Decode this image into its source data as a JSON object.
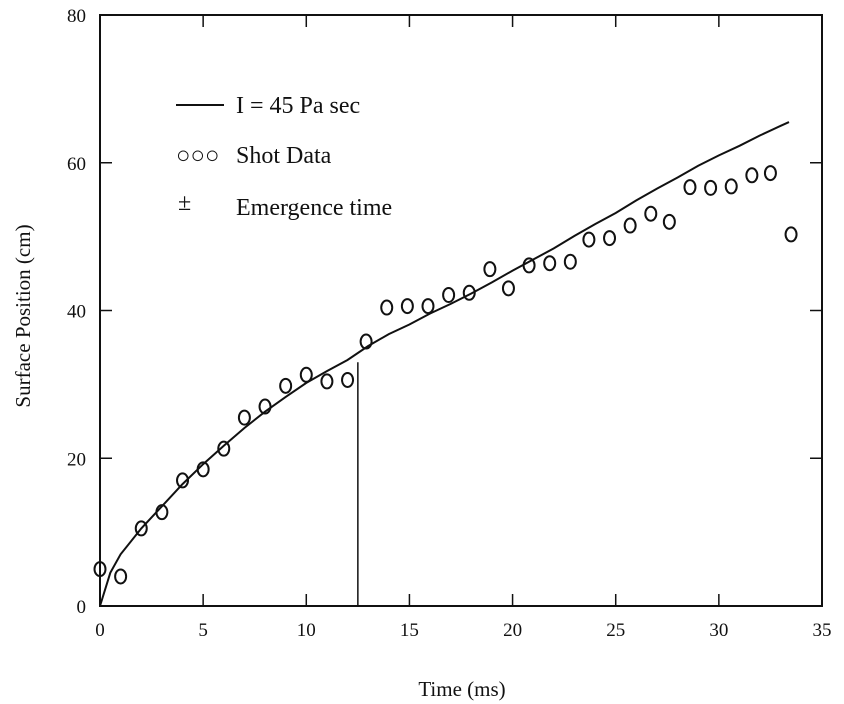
{
  "chart_data": {
    "type": "scatter",
    "xlabel": "Time (ms)",
    "ylabel": "Surface Position (cm)",
    "xlim": [
      0,
      35
    ],
    "ylim": [
      0,
      80
    ],
    "x_ticks": [
      "0",
      "5",
      "10",
      "15",
      "20",
      "25",
      "30",
      "35"
    ],
    "y_ticks": [
      "0",
      "20",
      "40",
      "60",
      "80"
    ],
    "x_tick_values": [
      0,
      5,
      10,
      15,
      20,
      25,
      30,
      35
    ],
    "y_tick_values": [
      0,
      20,
      40,
      60,
      80
    ],
    "grid": false,
    "legend_position": "top-left",
    "legend": {
      "line_label": "I = 45 Pa sec",
      "data_label": "Shot Data",
      "marker_symbol": "○○○",
      "emergence_symbol": "±",
      "emergence_label": "Emergence time"
    },
    "series": [
      {
        "name": "I = 45 Pa sec",
        "kind": "line",
        "x": [
          0,
          0.5,
          1,
          2,
          3,
          4,
          5,
          6,
          7,
          8,
          9,
          10,
          11,
          12,
          13,
          14,
          15,
          16,
          17,
          18,
          19,
          20,
          21,
          22,
          23,
          24,
          25,
          26,
          27,
          28,
          29,
          30,
          31,
          32,
          33,
          33.4
        ],
        "y": [
          0,
          4.5,
          7,
          10.5,
          13.5,
          16.5,
          19.2,
          21.7,
          24.1,
          26.3,
          28.3,
          30.2,
          31.8,
          33.3,
          35.2,
          36.8,
          38.1,
          39.6,
          40.9,
          42.3,
          43.8,
          45.4,
          46.9,
          48.4,
          50.1,
          51.7,
          53.2,
          54.9,
          56.5,
          58.0,
          59.6,
          61.0,
          62.3,
          63.7,
          65.0,
          65.5
        ]
      },
      {
        "name": "Shot Data",
        "kind": "scatter",
        "x": [
          0,
          1,
          2,
          3,
          4,
          5,
          6,
          7,
          8,
          9,
          10,
          11,
          12,
          12.9,
          13.9,
          14.9,
          15.9,
          16.9,
          17.9,
          18.9,
          19.8,
          20.8,
          21.8,
          22.8,
          23.7,
          24.7,
          25.7,
          26.7,
          27.6,
          28.6,
          29.6,
          30.6,
          31.6,
          32.5,
          33.5
        ],
        "y": [
          5,
          4,
          10.5,
          12.7,
          17,
          18.5,
          21.3,
          25.5,
          27,
          29.8,
          31.3,
          30.4,
          30.6,
          35.8,
          40.4,
          40.6,
          40.6,
          42.1,
          42.4,
          45.6,
          43,
          46.1,
          46.4,
          46.6,
          49.6,
          49.8,
          51.5,
          53.1,
          52,
          56.7,
          56.6,
          56.8,
          58.3,
          58.6,
          50.3
        ]
      }
    ],
    "emergence_time": {
      "x": 12.5,
      "y": 33
    }
  }
}
